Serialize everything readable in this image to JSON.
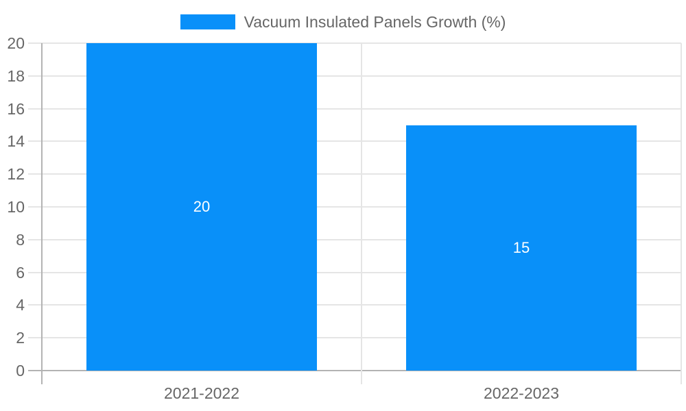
{
  "legend": {
    "label": "Vacuum Insulated Panels Growth (%)"
  },
  "colors": {
    "background": "#ffffff",
    "bar": "#0990f9",
    "grid": "#e5e5e5",
    "axis": "#b3b3b3",
    "text": "#666666",
    "data_label": "#ffffff"
  },
  "chart_data": {
    "type": "bar",
    "title": "",
    "categories": [
      "2021-2022",
      "2022-2023"
    ],
    "series": [
      {
        "name": "Vacuum Insulated Panels Growth (%)",
        "values": [
          20,
          15
        ]
      }
    ],
    "data_labels": [
      "20",
      "15"
    ],
    "xlabel": "",
    "ylabel": "",
    "ylim": [
      0,
      20
    ],
    "yticks": [
      0,
      2,
      4,
      6,
      8,
      10,
      12,
      14,
      16,
      18,
      20
    ],
    "grid": true,
    "legend_position": "top"
  }
}
